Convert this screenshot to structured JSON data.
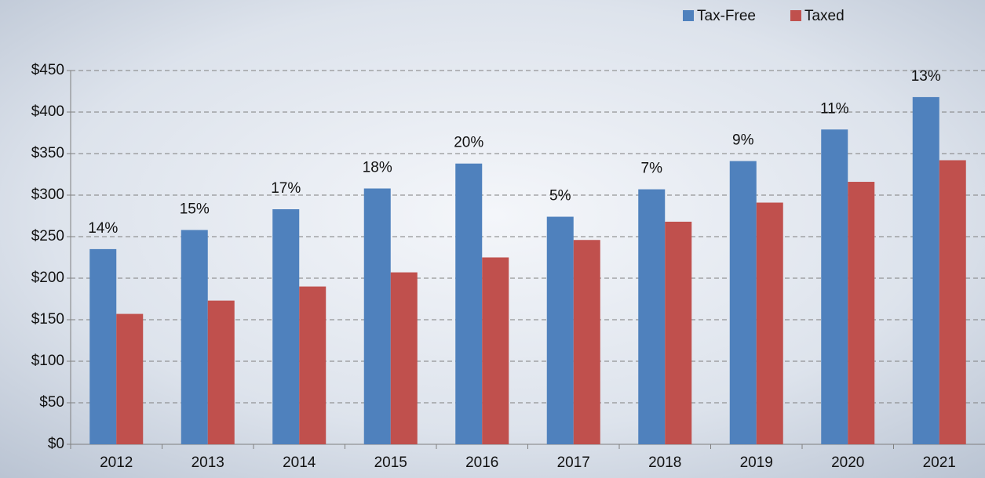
{
  "chart_data": {
    "type": "bar",
    "categories": [
      "2012",
      "2013",
      "2014",
      "2015",
      "2016",
      "2017",
      "2018",
      "2019",
      "2020",
      "2021"
    ],
    "series": [
      {
        "name": "Tax-Free",
        "color": "#4f81bd",
        "values": [
          235,
          258,
          283,
          308,
          338,
          274,
          307,
          341,
          379,
          418
        ]
      },
      {
        "name": "Taxed",
        "color": "#c0504d",
        "values": [
          157,
          173,
          190,
          207,
          225,
          246,
          268,
          291,
          316,
          342
        ]
      }
    ],
    "annotations": [
      "14%",
      "15%",
      "17%",
      "18%",
      "20%",
      "5%",
      "7%",
      "9%",
      "11%",
      "13%"
    ],
    "ylim": [
      0,
      450
    ],
    "yticks": [
      {
        "value": 0,
        "label": "$0"
      },
      {
        "value": 50,
        "label": "$50"
      },
      {
        "value": 100,
        "label": "$100"
      },
      {
        "value": 150,
        "label": "$150"
      },
      {
        "value": 200,
        "label": "$200"
      },
      {
        "value": 250,
        "label": "$250"
      },
      {
        "value": 300,
        "label": "$300"
      },
      {
        "value": 350,
        "label": "$350"
      },
      {
        "value": 400,
        "label": "$400"
      },
      {
        "value": 450,
        "label": "$450"
      }
    ],
    "grid": true,
    "legend": "top-right"
  }
}
